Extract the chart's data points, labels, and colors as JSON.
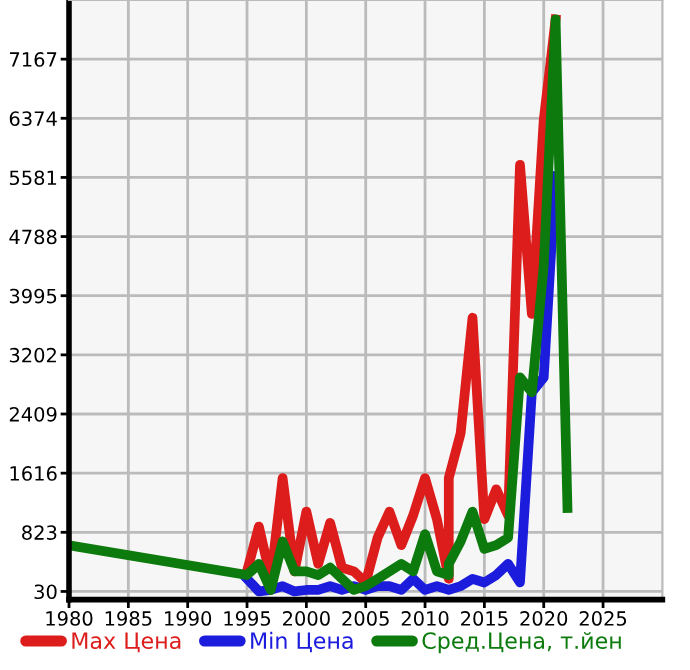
{
  "chart_data": {
    "type": "line",
    "xlim": [
      1980,
      2030
    ],
    "xticks": [
      1980,
      1985,
      1990,
      1995,
      2000,
      2005,
      2010,
      2015,
      2020,
      2025
    ],
    "ylim": [
      -80,
      7960
    ],
    "yticks": [
      30,
      823,
      1616,
      2409,
      3202,
      3995,
      4788,
      5581,
      6374,
      7167
    ],
    "grid": true,
    "legend": "bottom",
    "line_style": "solid",
    "marker": "none",
    "series": [
      {
        "name": "Max Цена",
        "color": "#dd1c1c",
        "x": [
          1995,
          1996,
          1997,
          1998,
          1999,
          2000,
          2001,
          2002,
          2003,
          2004,
          2005,
          2006,
          2007,
          2008,
          2009,
          2010,
          2011,
          2012,
          2012,
          2013,
          2014,
          2015,
          2016,
          2017,
          2018,
          2019,
          2020,
          2021
        ],
        "values": [
          300,
          900,
          200,
          1550,
          300,
          1100,
          400,
          950,
          350,
          300,
          150,
          750,
          1100,
          650,
          1050,
          1550,
          1000,
          200,
          1550,
          2150,
          3700,
          1000,
          1400,
          1050,
          5750,
          3750,
          6350,
          7700
        ]
      },
      {
        "name": "Min Цена",
        "color": "#1c1cdd",
        "x": [
          1995,
          1996,
          1997,
          1998,
          1999,
          2000,
          2001,
          2002,
          2003,
          2004,
          2005,
          2006,
          2007,
          2008,
          2009,
          2010,
          2011,
          2012,
          2013,
          2014,
          2015,
          2016,
          2017,
          2018,
          2019,
          2020,
          2021
        ],
        "values": [
          200,
          30,
          50,
          100,
          30,
          50,
          50,
          100,
          50,
          100,
          50,
          100,
          100,
          50,
          200,
          50,
          100,
          50,
          100,
          200,
          150,
          250,
          400,
          150,
          2700,
          2900,
          5600
        ]
      },
      {
        "name": "Сред.Цена, т.йен",
        "color": "#0c7a0c",
        "x": [
          1980,
          1995,
          1996,
          1997,
          1998,
          1999,
          2000,
          2001,
          2002,
          2003,
          2004,
          2005,
          2006,
          2007,
          2008,
          2009,
          2010,
          2011,
          2012,
          2012,
          2013,
          2014,
          2015,
          2016,
          2017,
          2018,
          2019,
          2020,
          2021,
          2022
        ],
        "values": [
          650,
          250,
          400,
          50,
          700,
          300,
          300,
          250,
          350,
          200,
          50,
          100,
          200,
          300,
          400,
          300,
          800,
          300,
          250,
          400,
          700,
          1100,
          600,
          650,
          750,
          2900,
          2700,
          4400,
          7700,
          1150
        ]
      }
    ]
  }
}
